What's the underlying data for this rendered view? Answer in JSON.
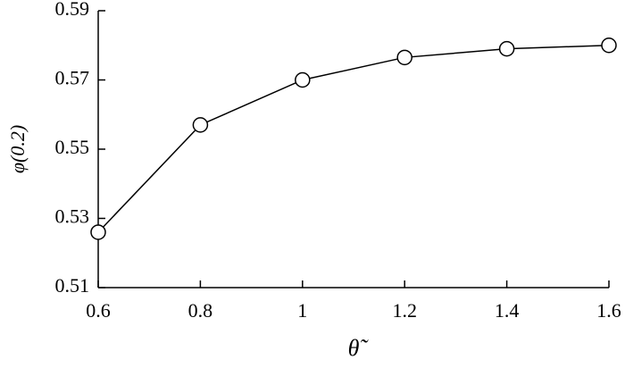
{
  "chart_data": {
    "type": "line",
    "x_label": "θ̃",
    "y_label": "φ(0.2)",
    "x": [
      0.6,
      0.8,
      1,
      1.2,
      1.4,
      1.6
    ],
    "series": [
      {
        "color": "#000000",
        "values": [
          0.526,
          0.557,
          0.57,
          0.5765,
          0.579,
          0.58
        ]
      }
    ],
    "xlim": [
      0.6,
      1.6
    ],
    "xticks": [
      0.6,
      0.8,
      1,
      1.2,
      1.4,
      1.6
    ],
    "ylim": [
      0.51,
      0.59
    ],
    "yticks": [
      0.51,
      0.53,
      0.55,
      0.57,
      0.59
    ],
    "marker": "open-circle",
    "grid": false
  }
}
